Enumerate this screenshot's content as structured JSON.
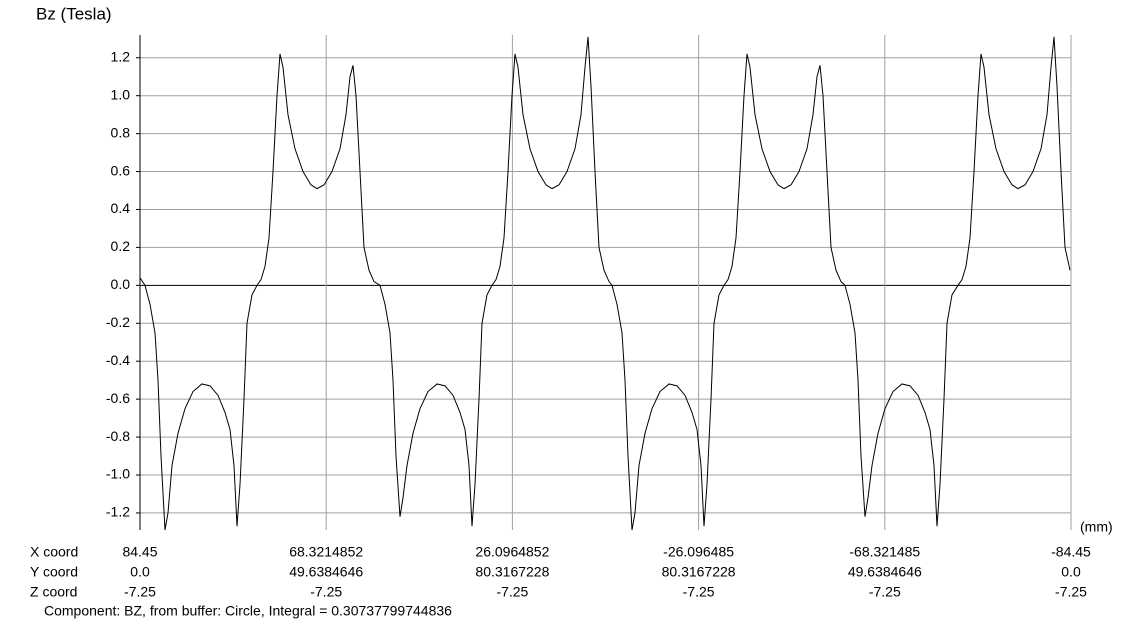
{
  "chart_data": {
    "type": "line",
    "title": "Bz (Tesla)",
    "x_unit": "(mm)",
    "row_labels": [
      "X coord",
      "Y coord",
      "Z coord"
    ],
    "footer": "Component: BZ, from buffer: Circle, Integral = 0.30737799744836",
    "xlim": [
      0,
      931
    ],
    "xticks": [
      {
        "value": 0,
        "x": "84.45",
        "y": "0.0",
        "z": "-7.25"
      },
      {
        "value": 186.2,
        "x": "68.3214852",
        "y": "49.6384646",
        "z": "-7.25"
      },
      {
        "value": 372.4,
        "x": "26.0964852",
        "y": "80.3167228",
        "z": "-7.25"
      },
      {
        "value": 558.6,
        "x": "-26.096485",
        "y": "80.3167228",
        "z": "-7.25"
      },
      {
        "value": 744.8,
        "x": "-68.321485",
        "y": "49.6384646",
        "z": "-7.25"
      },
      {
        "value": 931,
        "x": "-84.45",
        "y": "0.0",
        "z": "-7.25"
      }
    ],
    "ylim": [
      -1.29,
      1.32
    ],
    "yticks": [
      -1.2,
      {
        "value": -1,
        "label": "-1.0"
      },
      -0.8,
      -0.6,
      -0.4,
      -0.2,
      {
        "value": 0,
        "label": "0.0"
      },
      0.2,
      0.4,
      0.6,
      0.8,
      {
        "value": 1,
        "label": "1.0"
      },
      1.2
    ],
    "grid": true,
    "series": [
      {
        "name": "BZ",
        "color": "#000000",
        "x": [
          0,
          5,
          10,
          15,
          18,
          21,
          25,
          28,
          32,
          38,
          45,
          53,
          62,
          70,
          78,
          85,
          90,
          94,
          97,
          100,
          104,
          107,
          112,
          117,
          121,
          125,
          129,
          133,
          137,
          140,
          143,
          148,
          155,
          163,
          171,
          177,
          184,
          192,
          200,
          206,
          210,
          213,
          216,
          220,
          224,
          229,
          234,
          240,
          245,
          250,
          253,
          256,
          260,
          263,
          267,
          273,
          280,
          288,
          297,
          305,
          313,
          320,
          325,
          329,
          332,
          335,
          339,
          342,
          347,
          352,
          356,
          360,
          364,
          368,
          372,
          375,
          378,
          383,
          390,
          398,
          406,
          412,
          419,
          427,
          435,
          441,
          445,
          448,
          451,
          455,
          459,
          464,
          469,
          472,
          477,
          482,
          485,
          488,
          492,
          495,
          499,
          505,
          512,
          520,
          529,
          537,
          545,
          552,
          557,
          561,
          564,
          567,
          571,
          574,
          579,
          584,
          588,
          592,
          596,
          600,
          604,
          607,
          610,
          615,
          622,
          630,
          638,
          644,
          651,
          659,
          667,
          673,
          677,
          680,
          683,
          687,
          691,
          696,
          701,
          705,
          710,
          715,
          718,
          721,
          725,
          728,
          732,
          738,
          745,
          753,
          762,
          770,
          778,
          785,
          790,
          794,
          797,
          800,
          804,
          807,
          812,
          818,
          822,
          826,
          830,
          834,
          838,
          841,
          844,
          849,
          856,
          864,
          872,
          878,
          885,
          893,
          901,
          907,
          911,
          914,
          917,
          921,
          925,
          930
        ],
        "values": [
          0.04,
          0,
          -0.1,
          -0.25,
          -0.5,
          -0.9,
          -1.29,
          -1.2,
          -0.95,
          -0.78,
          -0.65,
          -0.56,
          -0.52,
          -0.53,
          -0.58,
          -0.67,
          -0.76,
          -0.95,
          -1.27,
          -1.05,
          -0.6,
          -0.2,
          -0.05,
          0,
          0.03,
          0.1,
          0.25,
          0.6,
          1.0,
          1.22,
          1.15,
          0.9,
          0.72,
          0.6,
          0.53,
          0.51,
          0.53,
          0.6,
          0.72,
          0.9,
          1.1,
          1.16,
          1.0,
          0.6,
          0.2,
          0.08,
          0.02,
          0,
          -0.1,
          -0.25,
          -0.5,
          -0.9,
          -1.22,
          -1.12,
          -0.95,
          -0.78,
          -0.65,
          -0.56,
          -0.52,
          -0.53,
          -0.58,
          -0.67,
          -0.76,
          -0.95,
          -1.27,
          -1.05,
          -0.6,
          -0.2,
          -0.05,
          0,
          0.03,
          0.1,
          0.25,
          0.6,
          1.0,
          1.22,
          1.15,
          0.9,
          0.72,
          0.6,
          0.53,
          0.51,
          0.53,
          0.6,
          0.72,
          0.9,
          1.15,
          1.31,
          1.05,
          0.6,
          0.2,
          0.08,
          0.02,
          0,
          -0.1,
          -0.25,
          -0.5,
          -0.9,
          -1.29,
          -1.2,
          -0.95,
          -0.78,
          -0.65,
          -0.56,
          -0.52,
          -0.53,
          -0.58,
          -0.67,
          -0.76,
          -0.95,
          -1.27,
          -1.05,
          -0.6,
          -0.2,
          -0.05,
          0,
          0.03,
          0.1,
          0.25,
          0.6,
          1.0,
          1.22,
          1.15,
          0.9,
          0.72,
          0.6,
          0.53,
          0.51,
          0.53,
          0.6,
          0.72,
          0.9,
          1.1,
          1.16,
          1.0,
          0.6,
          0.2,
          0.08,
          0.02,
          0,
          -0.1,
          -0.25,
          -0.5,
          -0.9,
          -1.22,
          -1.12,
          -0.95,
          -0.78,
          -0.65,
          -0.56,
          -0.52,
          -0.53,
          -0.58,
          -0.67,
          -0.76,
          -0.95,
          -1.27,
          -1.05,
          -0.6,
          -0.2,
          -0.05,
          0,
          0.03,
          0.1,
          0.25,
          0.6,
          1.0,
          1.22,
          1.15,
          0.9,
          0.72,
          0.6,
          0.53,
          0.51,
          0.53,
          0.6,
          0.72,
          0.9,
          1.15,
          1.31,
          1.05,
          0.6,
          0.2,
          0.08
        ]
      }
    ]
  }
}
